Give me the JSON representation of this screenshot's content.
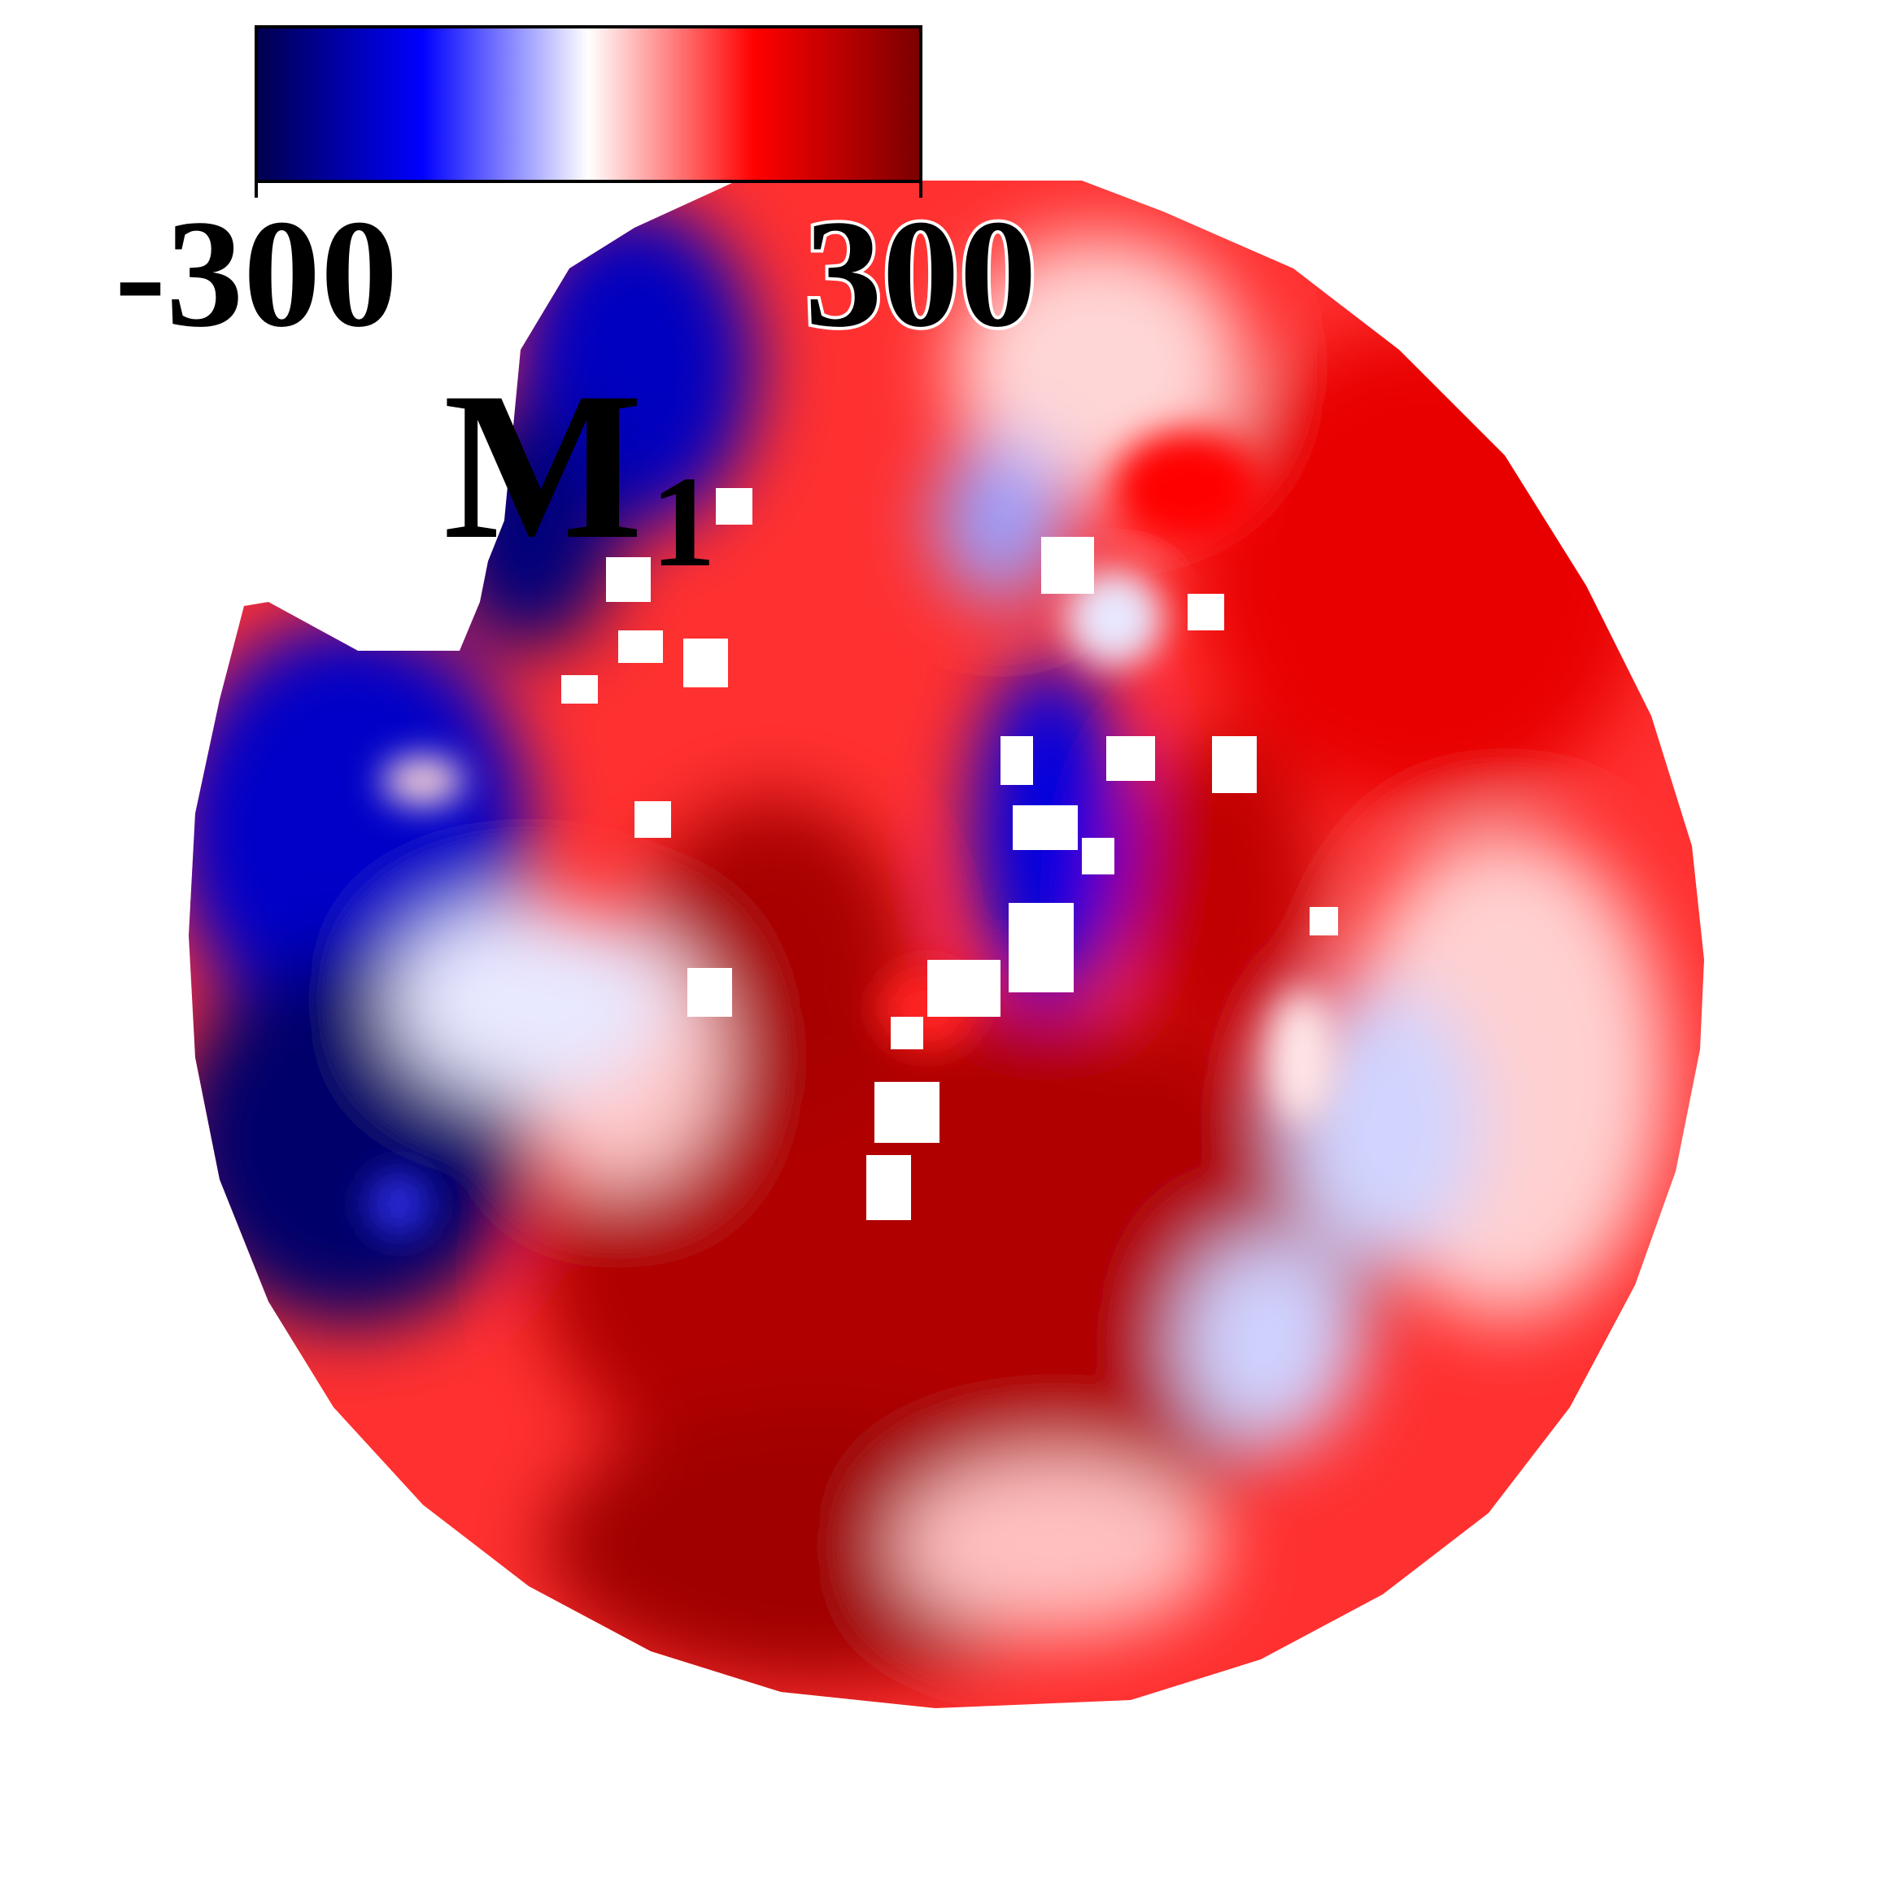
{
  "colorbar": {
    "min_label": "-300",
    "max_label": "300",
    "min_value": -300,
    "max_value": 300,
    "colors": {
      "dark_blue": "#00004d",
      "blue": "#0000ff",
      "white": "#ffffff",
      "red": "#ff0000",
      "dark_red": "#7a0000"
    }
  },
  "panel_label": {
    "main": "M",
    "subscript": "1"
  },
  "map": {
    "shape": "disc",
    "description_colors": {
      "background": "#ffffff",
      "mask": "#ffffff"
    }
  }
}
